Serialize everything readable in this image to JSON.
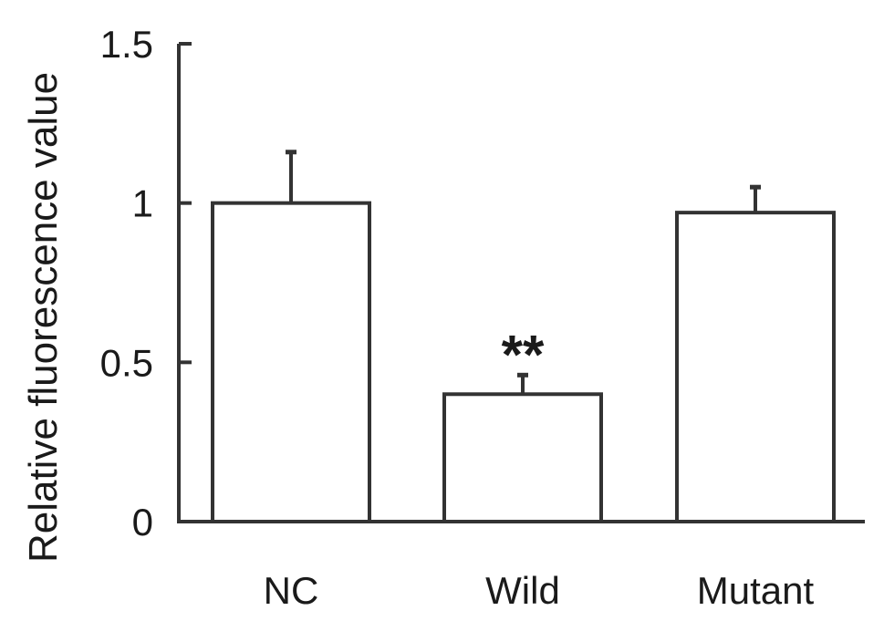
{
  "chart_data": {
    "type": "bar",
    "title": "",
    "xlabel": "",
    "ylabel": "Relative fluorescence value",
    "categories": [
      "NC",
      "Wild",
      "Mutant"
    ],
    "values": [
      1.0,
      0.4,
      0.97
    ],
    "errors": [
      0.16,
      0.06,
      0.08
    ],
    "annotations": [
      "",
      "**",
      ""
    ],
    "ylim": [
      0,
      1.5
    ],
    "yticks": [
      0,
      0.5,
      1,
      1.5
    ],
    "ytick_labels": [
      "0",
      "0.5",
      "1",
      "1.5"
    ],
    "grid": false,
    "legend": "none",
    "colors": {
      "bar_fill": "#ffffff",
      "stroke": "#333333"
    }
  }
}
